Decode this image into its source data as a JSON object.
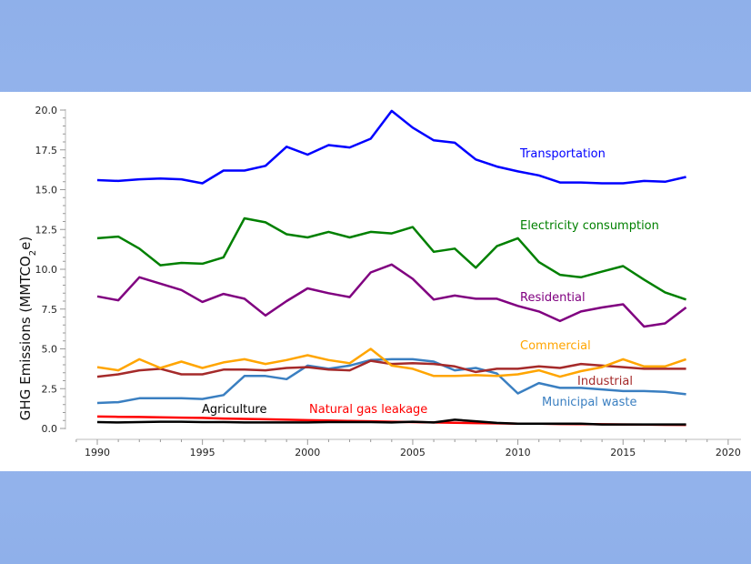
{
  "chart_data": {
    "type": "line",
    "title": "",
    "xlabel": "",
    "ylabel": "GHG Emissions (MMTCO₂e)",
    "ylabel_parts": {
      "main": "GHG Emissions (MMTCO",
      "sub": "2",
      "end": "e)"
    },
    "xlim": [
      1989,
      2020.5
    ],
    "ylim": [
      0,
      20
    ],
    "grid": false,
    "legend": "inline labels",
    "x_ticks": [
      "1990",
      "1995",
      "2000",
      "2005",
      "2010",
      "2015",
      "2020"
    ],
    "y_ticks": [
      "0.0",
      "2.5",
      "5.0",
      "7.5",
      "10.0",
      "12.5",
      "15.0",
      "17.5",
      "20.0"
    ],
    "x": [
      1990,
      1991,
      1992,
      1993,
      1994,
      1995,
      1996,
      1997,
      1998,
      1999,
      2000,
      2001,
      2002,
      2003,
      2004,
      2005,
      2006,
      2007,
      2008,
      2009,
      2010,
      2011,
      2012,
      2013,
      2014,
      2015,
      2016,
      2017,
      2018
    ],
    "series": [
      {
        "name": "Transportation",
        "color": "#0000ff",
        "values": [
          15.6,
          15.55,
          15.65,
          15.7,
          15.65,
          15.4,
          16.2,
          16.2,
          16.5,
          17.7,
          17.2,
          17.8,
          17.65,
          18.2,
          19.95,
          18.9,
          18.1,
          17.95,
          16.9,
          16.45,
          16.15,
          15.9,
          15.45,
          15.45,
          15.4,
          15.4,
          15.55,
          15.5,
          15.8
        ]
      },
      {
        "name": "Electricity consumption",
        "color": "#008000",
        "values": [
          11.95,
          12.05,
          11.3,
          10.25,
          10.4,
          10.35,
          10.75,
          13.2,
          12.95,
          12.2,
          12.0,
          12.35,
          12.0,
          12.35,
          12.25,
          12.65,
          11.1,
          11.3,
          10.1,
          11.45,
          11.95,
          10.45,
          9.65,
          9.5,
          9.85,
          10.2,
          9.35,
          8.55,
          8.1
        ]
      },
      {
        "name": "Residential",
        "color": "#800080",
        "values": [
          8.3,
          8.05,
          9.5,
          9.1,
          8.7,
          7.95,
          8.45,
          8.15,
          7.1,
          8.0,
          8.8,
          8.5,
          8.25,
          9.8,
          10.3,
          9.4,
          8.1,
          8.35,
          8.15,
          8.15,
          7.7,
          7.35,
          6.75,
          7.35,
          7.6,
          7.8,
          6.4,
          6.6,
          7.6
        ]
      },
      {
        "name": "Commercial",
        "color": "#ffa500",
        "values": [
          3.85,
          3.65,
          4.35,
          3.8,
          4.2,
          3.8,
          4.15,
          4.35,
          4.05,
          4.3,
          4.6,
          4.3,
          4.1,
          5.0,
          3.95,
          3.75,
          3.3,
          3.3,
          3.35,
          3.3,
          3.4,
          3.65,
          3.25,
          3.6,
          3.85,
          4.35,
          3.9,
          3.9,
          4.35
        ]
      },
      {
        "name": "Industrial",
        "color": "#a52a2a",
        "values": [
          3.25,
          3.4,
          3.65,
          3.75,
          3.4,
          3.4,
          3.7,
          3.7,
          3.65,
          3.8,
          3.85,
          3.7,
          3.65,
          4.25,
          4.05,
          4.1,
          4.05,
          3.9,
          3.55,
          3.75,
          3.75,
          3.9,
          3.8,
          4.05,
          3.95,
          3.85,
          3.75,
          3.75,
          3.75
        ]
      },
      {
        "name": "Municipal waste",
        "color": "#3a7fc1",
        "values": [
          1.6,
          1.65,
          1.9,
          1.9,
          1.9,
          1.85,
          2.1,
          3.3,
          3.3,
          3.1,
          3.95,
          3.75,
          3.95,
          4.3,
          4.35,
          4.35,
          4.2,
          3.65,
          3.8,
          3.45,
          2.2,
          2.85,
          2.55,
          2.55,
          2.45,
          2.35,
          2.35,
          2.3,
          2.15
        ]
      },
      {
        "name": "Agriculture",
        "color": "#000000",
        "values": [
          0.4,
          0.38,
          0.4,
          0.42,
          0.42,
          0.4,
          0.4,
          0.38,
          0.38,
          0.38,
          0.38,
          0.4,
          0.4,
          0.4,
          0.38,
          0.42,
          0.38,
          0.55,
          0.45,
          0.35,
          0.3,
          0.3,
          0.3,
          0.3,
          0.25,
          0.25,
          0.25,
          0.25,
          0.25
        ]
      },
      {
        "name": "Natural gas leakage",
        "color": "#ff0000",
        "values": [
          0.75,
          0.73,
          0.72,
          0.7,
          0.68,
          0.66,
          0.62,
          0.6,
          0.58,
          0.55,
          0.52,
          0.5,
          0.47,
          0.45,
          0.42,
          0.4,
          0.38,
          0.36,
          0.34,
          0.32,
          0.3,
          0.3,
          0.28,
          0.27,
          0.26,
          0.25,
          0.24,
          0.23,
          0.22
        ]
      }
    ]
  }
}
